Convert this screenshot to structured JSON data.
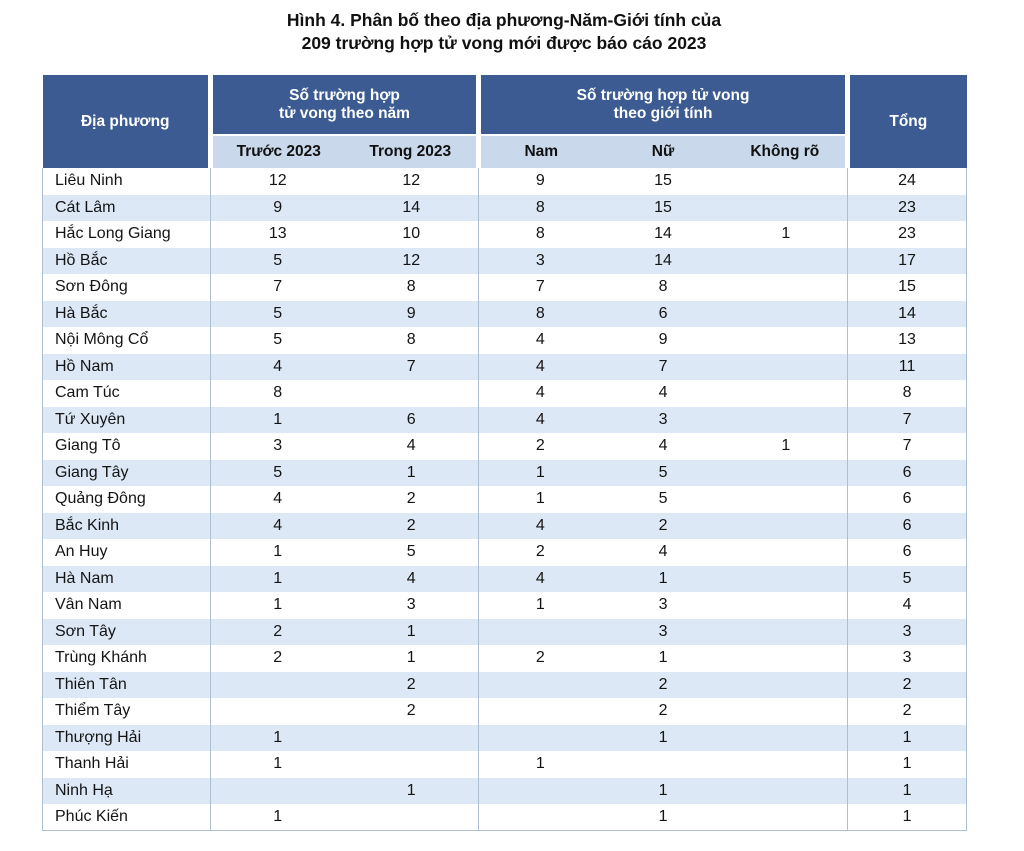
{
  "title": {
    "line1": "Hình 4. Phân bố theo địa phương-Năm-Giới tính của",
    "line2": "209 trường hợp tử vong mới được báo cáo 2023"
  },
  "table": {
    "headers": {
      "location": "Địa phương",
      "year_group": "Số trường hợp\ntử vong theo năm",
      "gender_group": "Số trường hợp tử vong\ntheo giới tính",
      "total": "Tổng",
      "sub": {
        "before_2023": "Trước 2023",
        "during_2023": "Trong 2023",
        "male": "Nam",
        "female": "Nữ",
        "unknown": "Không rõ"
      }
    },
    "rows": [
      {
        "location": "Liêu Ninh",
        "values": [
          "12",
          "12",
          "9",
          "15",
          "",
          "24"
        ]
      },
      {
        "location": "Cát Lâm",
        "values": [
          "9",
          "14",
          "8",
          "15",
          "",
          "23"
        ]
      },
      {
        "location": "Hắc Long Giang",
        "values": [
          "13",
          "10",
          "8",
          "14",
          "1",
          "23"
        ]
      },
      {
        "location": "Hồ Bắc",
        "values": [
          "5",
          "12",
          "3",
          "14",
          "",
          "17"
        ]
      },
      {
        "location": "Sơn Đông",
        "values": [
          "7",
          "8",
          "7",
          "8",
          "",
          "15"
        ]
      },
      {
        "location": "Hà Bắc",
        "values": [
          "5",
          "9",
          "8",
          "6",
          "",
          "14"
        ]
      },
      {
        "location": "Nội Mông Cổ",
        "values": [
          "5",
          "8",
          "4",
          "9",
          "",
          "13"
        ]
      },
      {
        "location": "Hồ Nam",
        "values": [
          "4",
          "7",
          "4",
          "7",
          "",
          "11"
        ]
      },
      {
        "location": "Cam Túc",
        "values": [
          "8",
          "",
          "4",
          "4",
          "",
          "8"
        ]
      },
      {
        "location": "Tứ Xuyên",
        "values": [
          "1",
          "6",
          "4",
          "3",
          "",
          "7"
        ]
      },
      {
        "location": "Giang Tô",
        "values": [
          "3",
          "4",
          "2",
          "4",
          "1",
          "7"
        ]
      },
      {
        "location": "Giang Tây",
        "values": [
          "5",
          "1",
          "1",
          "5",
          "",
          "6"
        ]
      },
      {
        "location": "Quảng Đông",
        "values": [
          "4",
          "2",
          "1",
          "5",
          "",
          "6"
        ]
      },
      {
        "location": "Bắc Kinh",
        "values": [
          "4",
          "2",
          "4",
          "2",
          "",
          "6"
        ]
      },
      {
        "location": "An Huy",
        "values": [
          "1",
          "5",
          "2",
          "4",
          "",
          "6"
        ]
      },
      {
        "location": "Hà Nam",
        "values": [
          "1",
          "4",
          "4",
          "1",
          "",
          "5"
        ]
      },
      {
        "location": "Vân Nam",
        "values": [
          "1",
          "3",
          "1",
          "3",
          "",
          "4"
        ]
      },
      {
        "location": "Sơn Tây",
        "values": [
          "2",
          "1",
          "",
          "3",
          "",
          "3"
        ]
      },
      {
        "location": "Trùng Khánh",
        "values": [
          "2",
          "1",
          "2",
          "1",
          "",
          "3"
        ]
      },
      {
        "location": "Thiên Tân",
        "values": [
          "",
          "2",
          "",
          "2",
          "",
          "2"
        ]
      },
      {
        "location": "Thiểm Tây",
        "values": [
          "",
          "2",
          "",
          "2",
          "",
          "2"
        ]
      },
      {
        "location": "Thượng Hải",
        "values": [
          "1",
          "",
          "",
          "1",
          "",
          "1"
        ]
      },
      {
        "location": "Thanh Hải",
        "values": [
          "1",
          "",
          "1",
          "",
          "",
          "1"
        ]
      },
      {
        "location": "Ninh Hạ",
        "values": [
          "",
          "1",
          "",
          "1",
          "",
          "1"
        ]
      },
      {
        "location": "Phúc Kiến",
        "values": [
          "1",
          "",
          "",
          "1",
          "",
          "1"
        ]
      }
    ]
  },
  "colors": {
    "header_dark": "#3B5B92",
    "header_light": "#C9D8EA",
    "row_alt": "#DCE8F5",
    "row_base": "#FFFFFF",
    "border": "#AEBFD2",
    "text": "#141414",
    "header_text": "#FFFFFF"
  }
}
